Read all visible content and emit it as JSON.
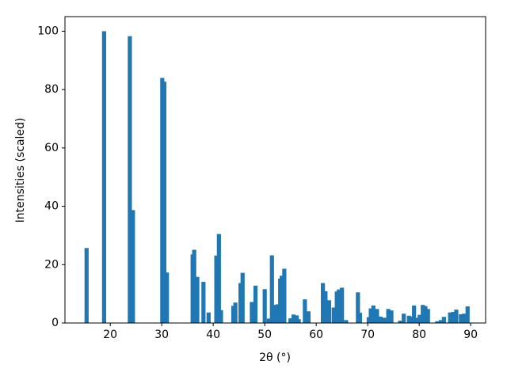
{
  "chart_data": {
    "type": "bar",
    "xlabel": "2θ (°)",
    "ylabel": "Intensities (scaled)",
    "color": "#1f77b4",
    "x": [
      15.4,
      18.8,
      23.8,
      24.4,
      30.1,
      30.5,
      31.0,
      36.0,
      36.3,
      36.9,
      38.1,
      39.1,
      40.6,
      41.1,
      41.5,
      43.9,
      44.3,
      45.3,
      45.7,
      47.5,
      48.2,
      50.0,
      50.8,
      51.4,
      52.1,
      52.5,
      53.0,
      53.3,
      53.8,
      55.0,
      55.6,
      56.2,
      56.6,
      57.8,
      58.5,
      61.3,
      61.8,
      62.5,
      63.4,
      64.0,
      64.4,
      65.0,
      65.8,
      68.1,
      68.5,
      70.2,
      70.6,
      71.1,
      71.8,
      72.5,
      73.2,
      74.0,
      74.6,
      76.3,
      77.0,
      78.0,
      78.5,
      79.0,
      79.6,
      80.1,
      80.7,
      81.2,
      81.7,
      83.5,
      84.2,
      84.8,
      86.0,
      86.6,
      87.2,
      88.1,
      88.7,
      89.4
    ],
    "values": [
      25.7,
      100,
      98.3,
      38.7,
      84,
      82.7,
      17.3,
      23.5,
      25.1,
      15.8,
      14.1,
      3.6,
      23.1,
      30.5,
      4.4,
      5.9,
      7.0,
      13.7,
      17.2,
      7.2,
      12.8,
      11.6,
      1.5,
      23.2,
      6.2,
      6.4,
      15.2,
      16.2,
      18.6,
      1.6,
      2.9,
      2.6,
      1.3,
      8.1,
      4.0,
      13.7,
      10.9,
      7.8,
      5.3,
      10.8,
      11.5,
      12.1,
      1.0,
      10.5,
      3.5,
      2.0,
      5.0,
      6.0,
      4.8,
      2.2,
      1.8,
      4.8,
      4.3,
      0.8,
      3.2,
      2.5,
      2.2,
      6.0,
      1.8,
      2.8,
      6.2,
      5.8,
      4.8,
      0.6,
      1.0,
      2.1,
      3.6,
      3.8,
      4.6,
      3.0,
      3.2,
      5.7
    ],
    "xlim": [
      11.2,
      92.9
    ],
    "ylim": [
      0,
      105
    ],
    "xticks": [
      20,
      30,
      40,
      50,
      60,
      70,
      80,
      90
    ],
    "yticks": [
      0,
      20,
      40,
      60,
      80,
      100
    ]
  }
}
